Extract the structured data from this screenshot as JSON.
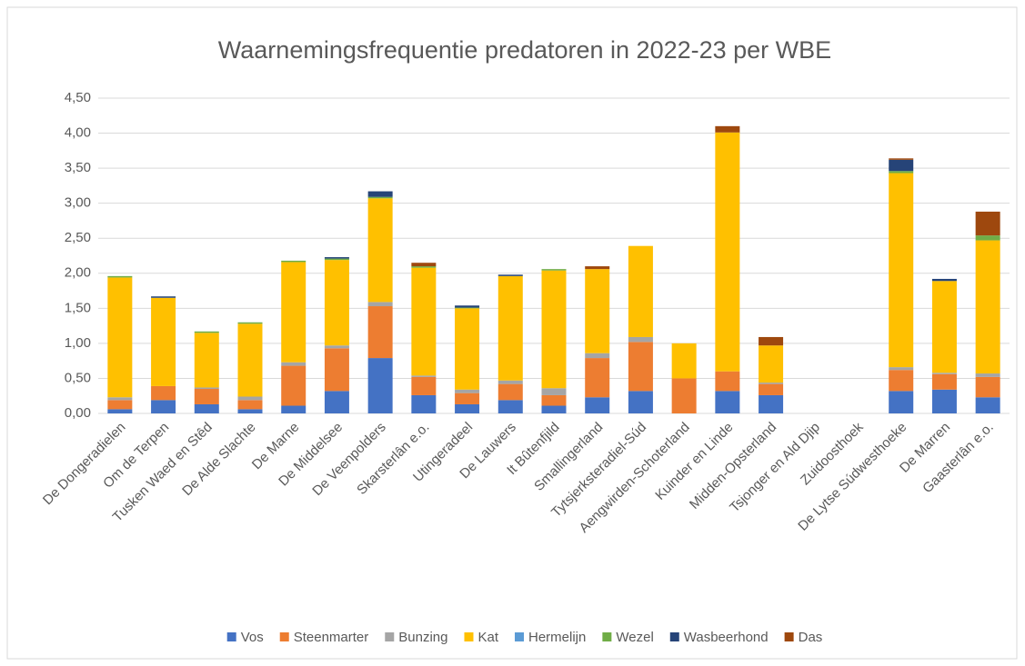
{
  "chart_data": {
    "type": "stacked-bar",
    "title": "Waarnemingsfrequentie predatoren in 2022-23 per WBE",
    "categories": [
      "De Dongeradielen",
      "Om de Terpen",
      "Tusken Waed en Stêd",
      "De Alde Slachte",
      "De Marne",
      "De Middelsee",
      "De Veenpolders",
      "Skarsterlân e.o.",
      "Utingeradeel",
      "De Lauwers",
      "It Bûtenfjild",
      "Smallingerland",
      "Tytsjerksteradiel-Súd",
      "Aengwirden-Schoterland",
      "Kuinder en Linde",
      "Midden-Opsterland",
      "Tsjonger en Ald Djip",
      "Zuidoosthoek",
      "De Lytse Súdwesthoeke",
      "De Marren",
      "Gaasterlân e.o."
    ],
    "series": [
      {
        "name": "Vos",
        "color": "#4472c4",
        "values": [
          0.06,
          0.19,
          0.13,
          0.06,
          0.11,
          0.32,
          0.79,
          0.26,
          0.13,
          0.19,
          0.11,
          0.23,
          0.32,
          0,
          0.32,
          0.26,
          0,
          0,
          0.32,
          0.34,
          0.23
        ]
      },
      {
        "name": "Steenmarter",
        "color": "#ed7d31",
        "values": [
          0.13,
          0.2,
          0.22,
          0.13,
          0.57,
          0.61,
          0.74,
          0.26,
          0.16,
          0.23,
          0.15,
          0.56,
          0.7,
          0.5,
          0.28,
          0.16,
          0,
          0,
          0.3,
          0.22,
          0.29
        ]
      },
      {
        "name": "Bunzing",
        "color": "#a5a5a5",
        "values": [
          0.04,
          0,
          0.02,
          0.05,
          0.05,
          0.04,
          0.06,
          0.02,
          0.05,
          0.05,
          0.1,
          0.07,
          0.07,
          0,
          0,
          0.02,
          0,
          0,
          0.04,
          0.02,
          0.05
        ]
      },
      {
        "name": "Kat",
        "color": "#ffc000",
        "values": [
          1.71,
          1.26,
          0.78,
          1.04,
          1.43,
          1.22,
          1.48,
          1.54,
          1.16,
          1.49,
          1.68,
          1.2,
          1.3,
          0.5,
          3.41,
          0.53,
          0,
          0,
          2.77,
          1.31,
          1.9
        ]
      },
      {
        "name": "Hermelijn",
        "color": "#5b9bd5",
        "values": [
          0,
          0,
          0,
          0,
          0,
          0,
          0,
          0,
          0,
          0,
          0,
          0,
          0,
          0,
          0,
          0,
          0,
          0,
          0,
          0,
          0
        ]
      },
      {
        "name": "Wezel",
        "color": "#70ad47",
        "values": [
          0.02,
          0,
          0.02,
          0.02,
          0.02,
          0.02,
          0.02,
          0.02,
          0.01,
          0,
          0.02,
          0,
          0,
          0,
          0,
          0,
          0,
          0,
          0.03,
          0,
          0.07
        ]
      },
      {
        "name": "Wasbeerhond",
        "color": "#264478",
        "values": [
          0,
          0.02,
          0,
          0,
          0,
          0.02,
          0.08,
          0,
          0.03,
          0.02,
          0,
          0,
          0,
          0,
          0,
          0,
          0,
          0,
          0.16,
          0.03,
          0
        ]
      },
      {
        "name": "Das",
        "color": "#9e480e",
        "values": [
          0,
          0,
          0,
          0,
          0,
          0,
          0,
          0.05,
          0,
          0,
          0,
          0.04,
          0,
          0,
          0.09,
          0.12,
          0,
          0,
          0.02,
          0,
          0.34
        ]
      }
    ],
    "ylim": [
      0,
      4.5
    ],
    "yticks": [
      {
        "value": 0,
        "label": "0,00"
      },
      {
        "value": 0.5,
        "label": "0,50"
      },
      {
        "value": 1,
        "label": "1,00"
      },
      {
        "value": 1.5,
        "label": "1,50"
      },
      {
        "value": 2,
        "label": "2,00"
      },
      {
        "value": 2.5,
        "label": "2,50"
      },
      {
        "value": 3,
        "label": "3,00"
      },
      {
        "value": 3.5,
        "label": "3,50"
      },
      {
        "value": 4,
        "label": "4,00"
      },
      {
        "value": 4.5,
        "label": "4,50"
      }
    ],
    "grid": true,
    "legend": "bottom"
  }
}
